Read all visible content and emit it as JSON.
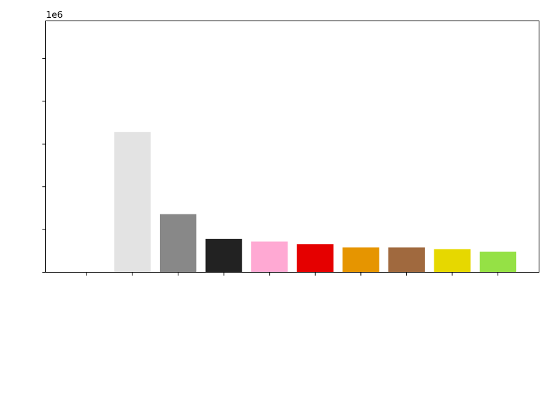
{
  "chart_data": {
    "type": "bar",
    "categories": [
      "",
      "",
      "",
      "",
      "",
      "",
      "",
      "",
      "",
      ""
    ],
    "values": [
      0,
      3280000,
      1360000,
      780000,
      720000,
      660000,
      580000,
      580000,
      540000,
      480000
    ],
    "colors": [
      "#1f77b4",
      "#e3e3e3",
      "#888888",
      "#222222",
      "#ffa9d3",
      "#e50000",
      "#e69500",
      "#a0693e",
      "#e6d800",
      "#95e145"
    ],
    "offset_label": "1e6",
    "ylim": [
      0,
      5880000
    ],
    "yticks": [
      0,
      1000000,
      2000000,
      3000000,
      4000000,
      5000000
    ],
    "title": "",
    "xlabel": "",
    "ylabel": "",
    "grid": false,
    "tick_labels_visible": false
  }
}
